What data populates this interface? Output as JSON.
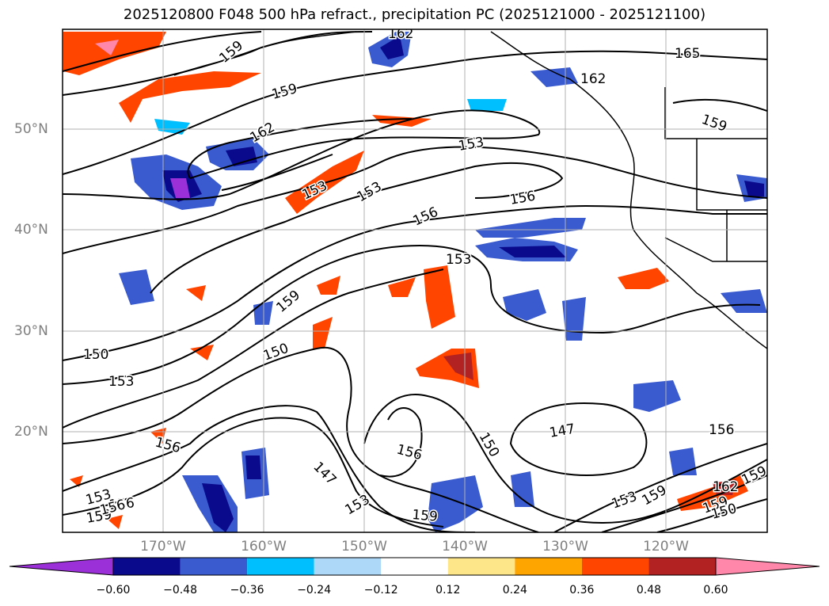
{
  "title": "2025120800 F048 500 hPa refract., precipitation PC (2025121000 - 2025121100)",
  "lat_labels": [
    "50°N",
    "40°N",
    "30°N",
    "20°N"
  ],
  "lon_labels": [
    "170°W",
    "160°W",
    "150°W",
    "140°W",
    "130°W",
    "120°W"
  ],
  "contour_labels": [
    "162",
    "159",
    "159",
    "165",
    "162",
    "159",
    "162",
    "153",
    "153",
    "156",
    "153",
    "156",
    "153",
    "159",
    "150",
    "150",
    "153",
    "156",
    "156",
    "147",
    "156",
    "150",
    "147",
    "153",
    "153",
    "156",
    "159",
    "159",
    "159",
    "153",
    "159",
    "162",
    "159",
    "156",
    "150"
  ],
  "colorbar": {
    "ticks": [
      "−0.60",
      "−0.48",
      "−0.36",
      "−0.24",
      "−0.12",
      "0.12",
      "0.24",
      "0.36",
      "0.48",
      "0.60"
    ],
    "colors": [
      "#9b30d9",
      "#0a0a8c",
      "#3a5bd0",
      "#00bfff",
      "#add8f8",
      "#ffffff",
      "#fde68a",
      "#ffa500",
      "#ff4500",
      "#b22222",
      "#ff88aa"
    ]
  }
}
